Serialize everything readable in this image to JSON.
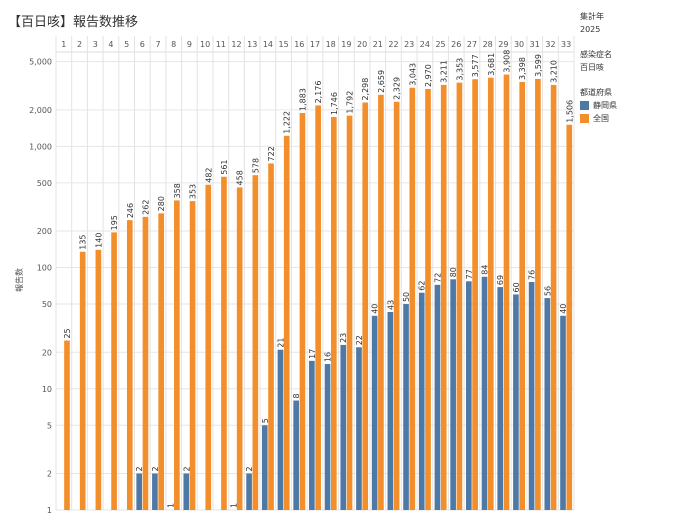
{
  "title": "【百日咳】報告数推移",
  "legend": {
    "year_header": "集計年",
    "year_value": "2025",
    "disease_header": "感染症名",
    "disease_value": "百日咳",
    "pref_header": "都道府県",
    "items": [
      {
        "label": "静岡県",
        "color": "#4e79a7"
      },
      {
        "label": "全国",
        "color": "#f28e2b"
      }
    ]
  },
  "chart_data": {
    "type": "bar",
    "scale": "log",
    "ylabel": "報告数",
    "ylim": [
      1,
      6000
    ],
    "y_ticks": [
      1,
      2,
      5,
      10,
      20,
      50,
      100,
      200,
      500,
      1000,
      2000,
      5000
    ],
    "y_tick_labels": [
      "1",
      "2",
      "5",
      "10",
      "20",
      "50",
      "100",
      "200",
      "500",
      "1,000",
      "2,000",
      "5,000"
    ],
    "categories": [
      "1",
      "2",
      "3",
      "4",
      "5",
      "6",
      "7",
      "8",
      "9",
      "10",
      "11",
      "12",
      "13",
      "14",
      "15",
      "16",
      "17",
      "18",
      "19",
      "20",
      "21",
      "22",
      "23",
      "24",
      "25",
      "26",
      "27",
      "28",
      "29",
      "30",
      "31",
      "32",
      "33"
    ],
    "series": [
      {
        "name": "静岡県",
        "color": "#4e79a7",
        "values": [
          null,
          null,
          null,
          null,
          null,
          2,
          2,
          1,
          2,
          null,
          null,
          1,
          2,
          5,
          21,
          8,
          17,
          16,
          23,
          22,
          40,
          43,
          50,
          62,
          72,
          80,
          77,
          84,
          69,
          60,
          76,
          56,
          40
        ]
      },
      {
        "name": "全国",
        "color": "#f28e2b",
        "values": [
          25,
          135,
          140,
          195,
          246,
          262,
          280,
          358,
          353,
          482,
          561,
          458,
          578,
          722,
          1222,
          1883,
          2176,
          1746,
          1792,
          2298,
          2659,
          2329,
          3043,
          2970,
          3211,
          3353,
          3577,
          3681,
          3908,
          3398,
          3599,
          3210,
          1506
        ]
      }
    ]
  }
}
